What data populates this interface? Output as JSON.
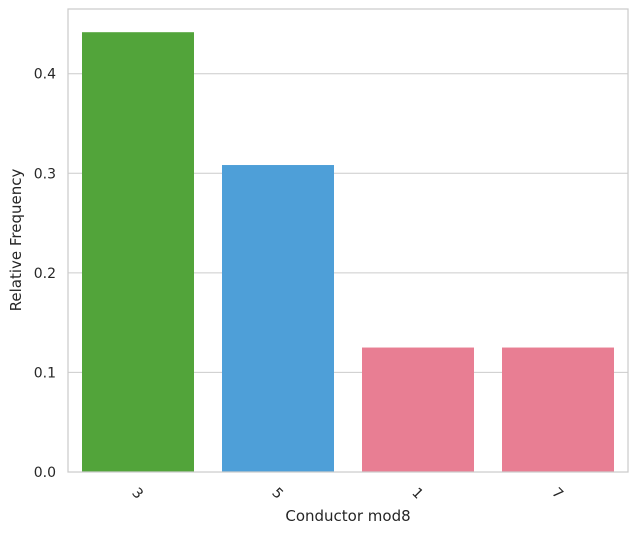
{
  "chart_data": {
    "type": "bar",
    "title": "",
    "xlabel": "Conductor mod8",
    "ylabel": "Relative Frequency",
    "categories": [
      "3",
      "5",
      "1",
      "7"
    ],
    "values": [
      0.4417,
      0.3083,
      0.125,
      0.125
    ],
    "colors": [
      "#52a43a",
      "#4e9fd8",
      "#e87e93",
      "#e87e93"
    ],
    "ylim": [
      0,
      0.465
    ],
    "yticks": [
      "0.0",
      "0.1",
      "0.2",
      "0.3",
      "0.4"
    ],
    "grid": "horizontal",
    "xtick_rotation": "45 degrees"
  }
}
